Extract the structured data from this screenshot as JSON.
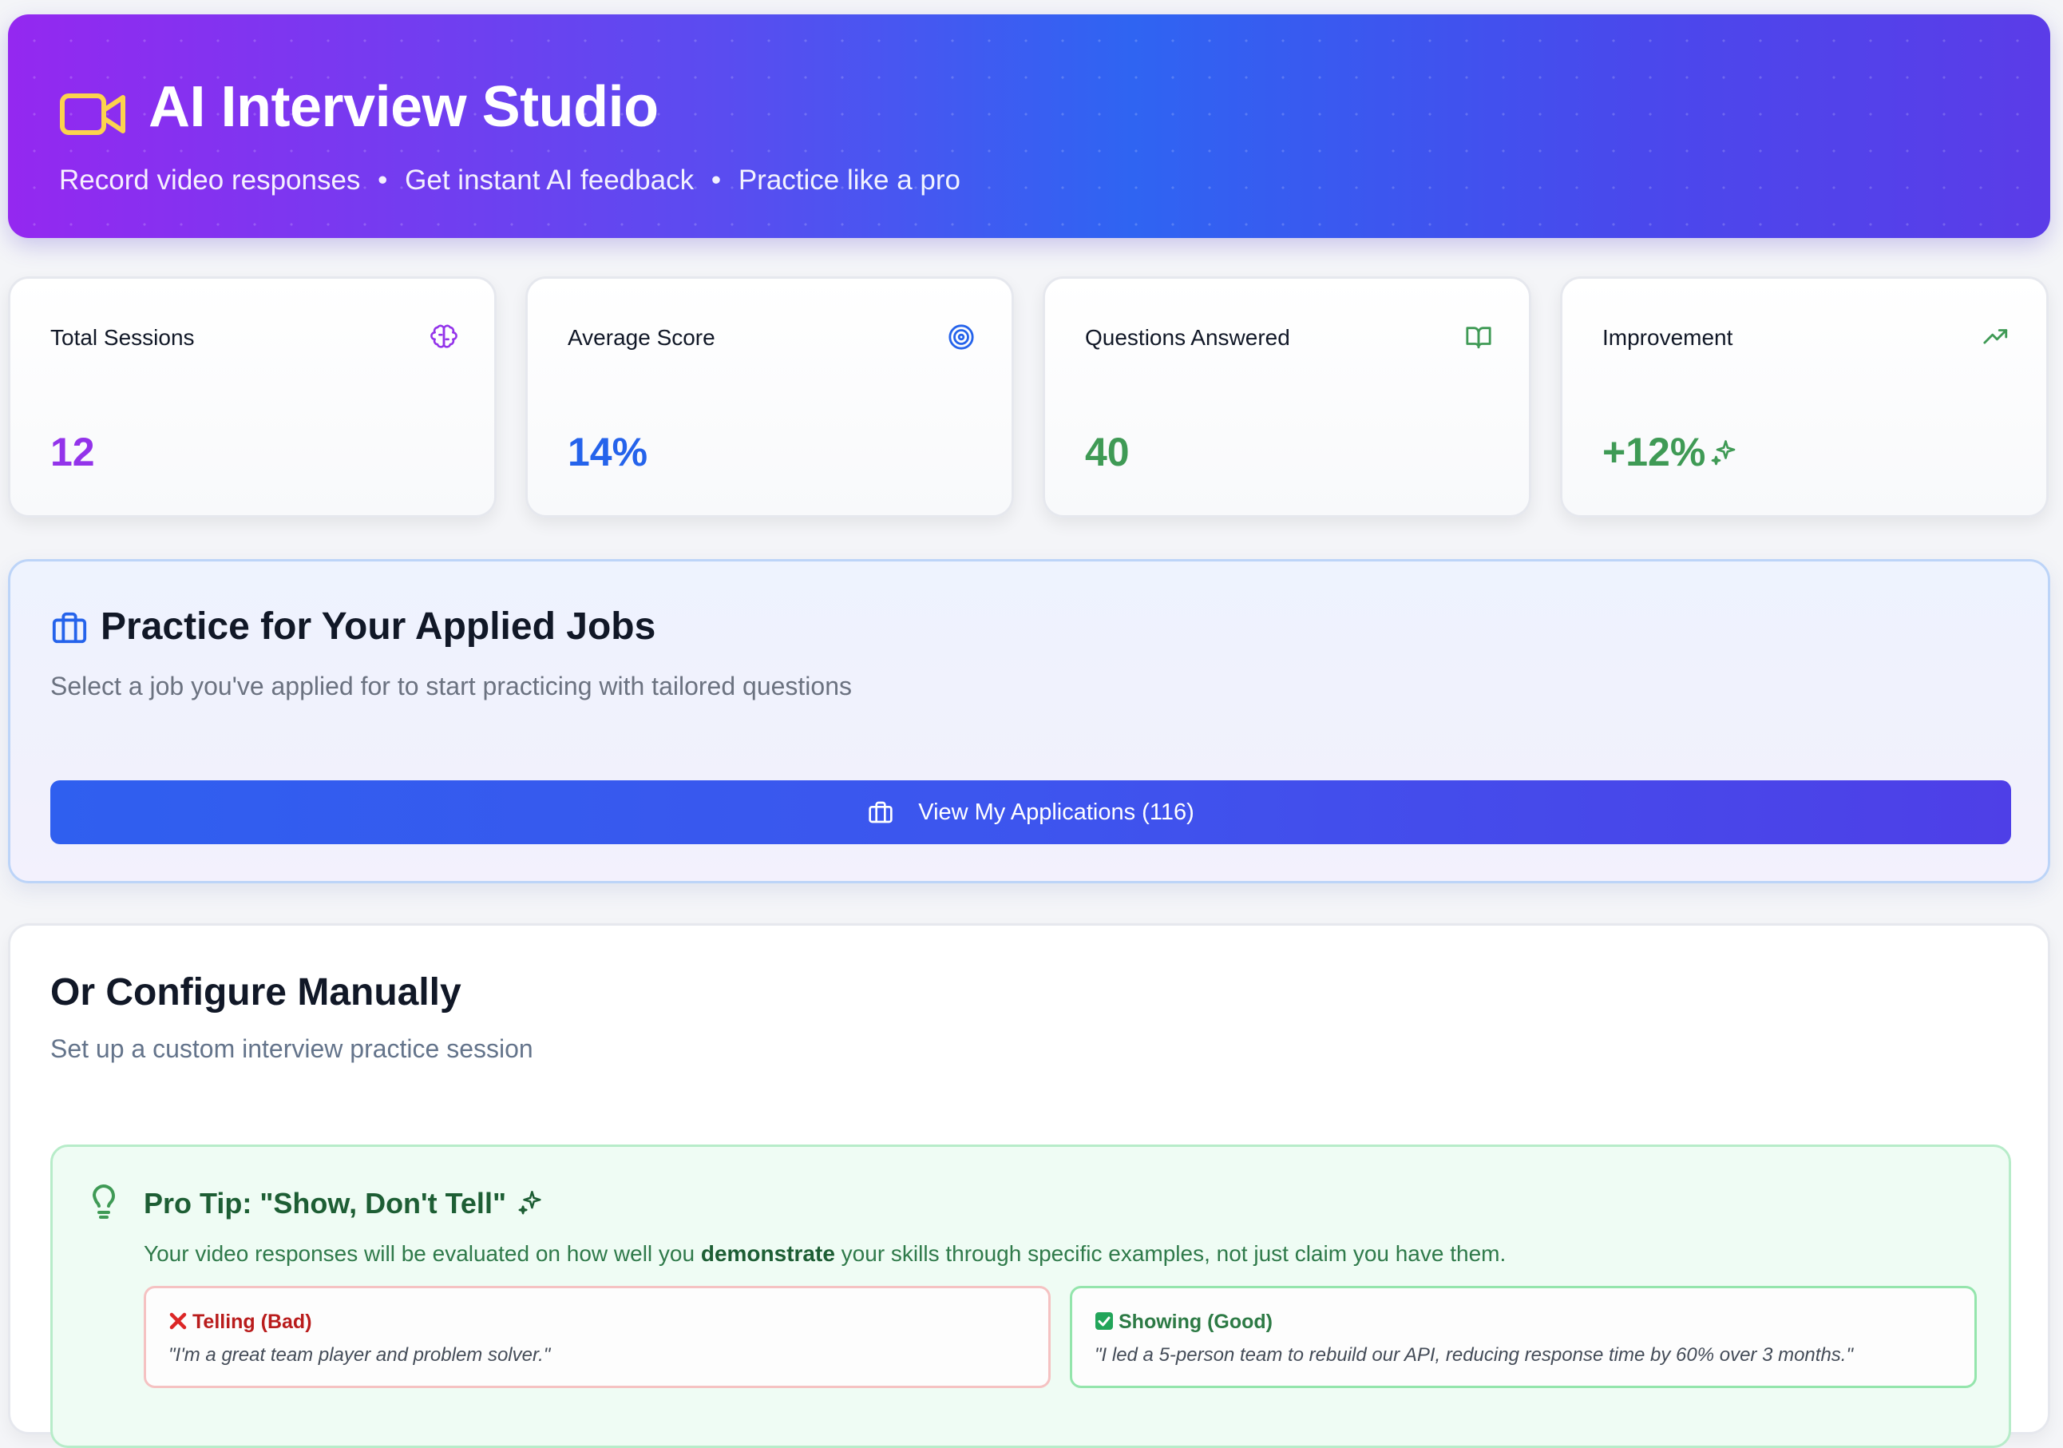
{
  "header": {
    "title": "AI Interview Studio",
    "subtitle_parts": [
      "Record video responses",
      "Get instant AI feedback",
      "Practice like a pro"
    ],
    "separator": "•",
    "icon": "video-camera-icon"
  },
  "stats": [
    {
      "label": "Total Sessions",
      "value": "12",
      "icon": "brain-icon",
      "color": "#9333ea"
    },
    {
      "label": "Average Score",
      "value": "14%",
      "icon": "target-icon",
      "color": "#2563eb"
    },
    {
      "label": "Questions Answered",
      "value": "40",
      "icon": "book-open-icon",
      "color": "#3f9a55"
    },
    {
      "label": "Improvement",
      "value": "+12%",
      "icon": "trending-up-icon",
      "color": "#3f9a55"
    }
  ],
  "jobs": {
    "title": "Practice for Your Applied Jobs",
    "subtitle": "Select a job you've applied for to start practicing with tailored questions",
    "button_label": "View My Applications (116)",
    "icon": "briefcase-icon"
  },
  "manual": {
    "title": "Or Configure Manually",
    "subtitle": "Set up a custom interview practice session"
  },
  "tip": {
    "title": "Pro Tip: \"Show, Don't Tell\"",
    "text_before": "Your video responses will be evaluated on how well you ",
    "text_bold": "demonstrate",
    "text_after": " your skills through specific examples, not just claim you have them.",
    "bad": {
      "label": "Telling (Bad)",
      "quote": "\"I'm a great team player and problem solver.\""
    },
    "good": {
      "label": "Showing (Good)",
      "quote": "\"I led a 5-person team to rebuild our API, reducing response time by 60% over 3 months.\""
    }
  }
}
